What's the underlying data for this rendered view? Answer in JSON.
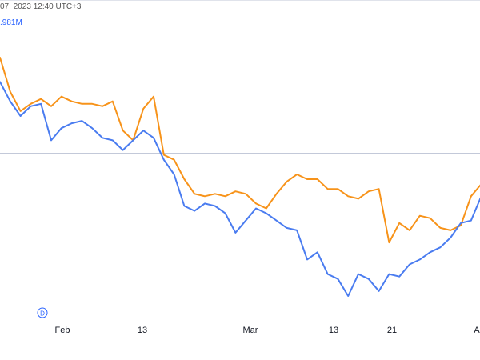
{
  "header": {
    "timestamp_text": "07, 2023 12:40 UTC+3",
    "value_text": ".981M"
  },
  "chart_data": {
    "type": "line",
    "x_tick_labels": [
      "Feb",
      "13",
      "Mar",
      "13",
      "21",
      "A"
    ],
    "marker_label": "D",
    "x": [
      0,
      1,
      2,
      3,
      4,
      5,
      6,
      7,
      8,
      9,
      10,
      11,
      12,
      13,
      14,
      15,
      16,
      17,
      18,
      19,
      20,
      21,
      22,
      23,
      24,
      25,
      26,
      27,
      28,
      29,
      30,
      31,
      32,
      33,
      34,
      35,
      36,
      37,
      38,
      39,
      40,
      41,
      42,
      43,
      44,
      45,
      46,
      47
    ],
    "series": [
      {
        "color": "#f7931a",
        "values": [
          76,
          62,
          54,
          57,
          59,
          56,
          60,
          58,
          57,
          57,
          56,
          58,
          46,
          42,
          55,
          60,
          36,
          34,
          26,
          20,
          19,
          20,
          19,
          21,
          20,
          16,
          14,
          20,
          25,
          28,
          26,
          26,
          22,
          22,
          19,
          18,
          21,
          22,
          0,
          8,
          5,
          11,
          10,
          6,
          5,
          7,
          19,
          24
        ]
      },
      {
        "color": "#4a7cf0",
        "values": [
          66,
          58,
          52,
          56,
          57,
          42,
          47,
          49,
          50,
          47,
          43,
          42,
          38,
          42,
          46,
          43,
          34,
          28,
          15,
          13,
          16,
          15,
          12,
          4,
          9,
          14,
          12,
          9,
          6,
          5,
          -7,
          -4,
          -13,
          -15,
          -22,
          -13,
          -15,
          -20,
          -13,
          -14,
          -9,
          -7,
          -4,
          -2,
          2,
          8,
          9,
          19
        ]
      }
    ]
  }
}
